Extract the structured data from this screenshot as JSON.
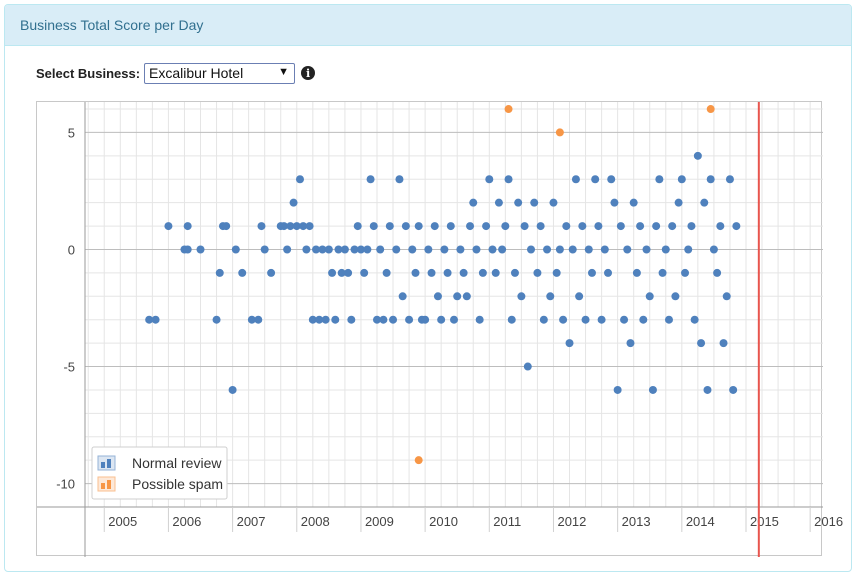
{
  "panel": {
    "title": "Business Total Score per Day"
  },
  "selector": {
    "label": "Select Business:",
    "value": "Excalibur Hotel",
    "info_icon": "info-circle-icon"
  },
  "colors": {
    "normal": "#4f81bd",
    "spam": "#f79646",
    "today_line": "#e8554e",
    "grid": "#e5e5e5"
  },
  "chart_data": {
    "type": "scatter",
    "title": "",
    "xlabel": "",
    "ylabel": "",
    "xlim": [
      2004.7,
      2016.2
    ],
    "ylim": [
      -11,
      6.3
    ],
    "x_ticks": [
      "2005",
      "2006",
      "2007",
      "2008",
      "2009",
      "2010",
      "2011",
      "2012",
      "2013",
      "2014",
      "2015",
      "2016"
    ],
    "y_ticks": [
      5,
      0,
      -5,
      -10
    ],
    "today_line_x": 2015.2,
    "grid": true,
    "legend": {
      "placement": "bottom-left",
      "entries": [
        "Normal review",
        "Possible spam"
      ]
    },
    "series": [
      {
        "name": "Normal review",
        "points": [
          [
            2005.7,
            -3
          ],
          [
            2005.8,
            -3
          ],
          [
            2006.0,
            1
          ],
          [
            2006.25,
            0
          ],
          [
            2006.3,
            1
          ],
          [
            2006.3,
            0
          ],
          [
            2006.5,
            0
          ],
          [
            2006.75,
            -3
          ],
          [
            2006.8,
            -1
          ],
          [
            2006.85,
            1
          ],
          [
            2006.9,
            1
          ],
          [
            2007.0,
            -6
          ],
          [
            2007.05,
            0
          ],
          [
            2007.15,
            -1
          ],
          [
            2007.3,
            -3
          ],
          [
            2007.4,
            -3
          ],
          [
            2007.45,
            1
          ],
          [
            2007.5,
            0
          ],
          [
            2007.6,
            -1
          ],
          [
            2007.75,
            1
          ],
          [
            2007.8,
            1
          ],
          [
            2007.85,
            0
          ],
          [
            2007.9,
            1
          ],
          [
            2007.95,
            2
          ],
          [
            2008.0,
            1
          ],
          [
            2008.05,
            3
          ],
          [
            2008.1,
            1
          ],
          [
            2008.15,
            0
          ],
          [
            2008.2,
            1
          ],
          [
            2008.25,
            -3
          ],
          [
            2008.3,
            0
          ],
          [
            2008.35,
            -3
          ],
          [
            2008.4,
            0
          ],
          [
            2008.45,
            -3
          ],
          [
            2008.5,
            0
          ],
          [
            2008.55,
            -1
          ],
          [
            2008.6,
            -3
          ],
          [
            2008.65,
            0
          ],
          [
            2008.7,
            -1
          ],
          [
            2008.75,
            0
          ],
          [
            2008.8,
            -1
          ],
          [
            2008.85,
            -3
          ],
          [
            2008.9,
            0
          ],
          [
            2008.95,
            1
          ],
          [
            2009.0,
            0
          ],
          [
            2009.05,
            -1
          ],
          [
            2009.1,
            0
          ],
          [
            2009.15,
            3
          ],
          [
            2009.2,
            1
          ],
          [
            2009.25,
            -3
          ],
          [
            2009.3,
            0
          ],
          [
            2009.35,
            -3
          ],
          [
            2009.4,
            -1
          ],
          [
            2009.45,
            1
          ],
          [
            2009.5,
            -3
          ],
          [
            2009.55,
            0
          ],
          [
            2009.6,
            3
          ],
          [
            2009.65,
            -2
          ],
          [
            2009.7,
            1
          ],
          [
            2009.75,
            -3
          ],
          [
            2009.8,
            0
          ],
          [
            2009.85,
            -1
          ],
          [
            2009.9,
            1
          ],
          [
            2009.95,
            -3
          ],
          [
            2010.0,
            -3
          ],
          [
            2010.05,
            0
          ],
          [
            2010.1,
            -1
          ],
          [
            2010.15,
            1
          ],
          [
            2010.2,
            -2
          ],
          [
            2010.25,
            -3
          ],
          [
            2010.3,
            0
          ],
          [
            2010.35,
            -1
          ],
          [
            2010.4,
            1
          ],
          [
            2010.45,
            -3
          ],
          [
            2010.5,
            -2
          ],
          [
            2010.55,
            0
          ],
          [
            2010.6,
            -1
          ],
          [
            2010.65,
            -2
          ],
          [
            2010.7,
            1
          ],
          [
            2010.75,
            2
          ],
          [
            2010.8,
            0
          ],
          [
            2010.85,
            -3
          ],
          [
            2010.9,
            -1
          ],
          [
            2010.95,
            1
          ],
          [
            2011.0,
            3
          ],
          [
            2011.05,
            0
          ],
          [
            2011.1,
            -1
          ],
          [
            2011.15,
            2
          ],
          [
            2011.2,
            0
          ],
          [
            2011.25,
            1
          ],
          [
            2011.3,
            3
          ],
          [
            2011.35,
            -3
          ],
          [
            2011.4,
            -1
          ],
          [
            2011.45,
            2
          ],
          [
            2011.5,
            -2
          ],
          [
            2011.55,
            1
          ],
          [
            2011.6,
            -5
          ],
          [
            2011.65,
            0
          ],
          [
            2011.7,
            2
          ],
          [
            2011.75,
            -1
          ],
          [
            2011.8,
            1
          ],
          [
            2011.85,
            -3
          ],
          [
            2011.9,
            0
          ],
          [
            2011.95,
            -2
          ],
          [
            2012.0,
            2
          ],
          [
            2012.05,
            -1
          ],
          [
            2012.1,
            0
          ],
          [
            2012.15,
            -3
          ],
          [
            2012.2,
            1
          ],
          [
            2012.25,
            -4
          ],
          [
            2012.3,
            0
          ],
          [
            2012.35,
            3
          ],
          [
            2012.4,
            -2
          ],
          [
            2012.45,
            1
          ],
          [
            2012.5,
            -3
          ],
          [
            2012.55,
            0
          ],
          [
            2012.6,
            -1
          ],
          [
            2012.65,
            3
          ],
          [
            2012.7,
            1
          ],
          [
            2012.75,
            -3
          ],
          [
            2012.8,
            0
          ],
          [
            2012.85,
            -1
          ],
          [
            2012.9,
            3
          ],
          [
            2012.95,
            2
          ],
          [
            2013.0,
            -6
          ],
          [
            2013.05,
            1
          ],
          [
            2013.1,
            -3
          ],
          [
            2013.15,
            0
          ],
          [
            2013.2,
            -4
          ],
          [
            2013.25,
            2
          ],
          [
            2013.3,
            -1
          ],
          [
            2013.35,
            1
          ],
          [
            2013.4,
            -3
          ],
          [
            2013.45,
            0
          ],
          [
            2013.5,
            -2
          ],
          [
            2013.55,
            -6
          ],
          [
            2013.6,
            1
          ],
          [
            2013.65,
            3
          ],
          [
            2013.7,
            -1
          ],
          [
            2013.75,
            0
          ],
          [
            2013.8,
            -3
          ],
          [
            2013.85,
            1
          ],
          [
            2013.9,
            -2
          ],
          [
            2013.95,
            2
          ],
          [
            2014.0,
            3
          ],
          [
            2014.05,
            -1
          ],
          [
            2014.1,
            0
          ],
          [
            2014.15,
            1
          ],
          [
            2014.2,
            -3
          ],
          [
            2014.25,
            4
          ],
          [
            2014.3,
            -4
          ],
          [
            2014.35,
            2
          ],
          [
            2014.4,
            -6
          ],
          [
            2014.45,
            3
          ],
          [
            2014.5,
            0
          ],
          [
            2014.55,
            -1
          ],
          [
            2014.6,
            1
          ],
          [
            2014.65,
            -4
          ],
          [
            2014.7,
            -2
          ],
          [
            2014.75,
            3
          ],
          [
            2014.8,
            -6
          ],
          [
            2014.85,
            1
          ]
        ]
      },
      {
        "name": "Possible spam",
        "points": [
          [
            2009.9,
            -9
          ],
          [
            2011.3,
            6
          ],
          [
            2012.1,
            5
          ],
          [
            2014.45,
            6
          ]
        ]
      }
    ]
  }
}
